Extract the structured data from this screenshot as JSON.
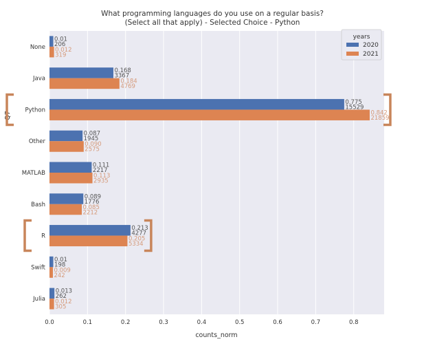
{
  "chart_data": {
    "type": "bar",
    "orientation": "horizontal",
    "title": "What programming languages do you use on a regular basis?",
    "subtitle": "(Select all that apply) - Selected Choice - Python",
    "xlabel": "counts_norm",
    "ylabel": "Q7",
    "xlim": [
      0,
      0.88
    ],
    "x_ticks": [
      "0.0",
      "0.1",
      "0.2",
      "0.3",
      "0.4",
      "0.5",
      "0.6",
      "0.7",
      "0.8"
    ],
    "grid": true,
    "categories": [
      "None",
      "Java",
      "Python",
      "Other",
      "MATLAB",
      "Bash",
      "R",
      "Swift",
      "Julia"
    ],
    "legend": {
      "title": "years",
      "placement": "top-right"
    },
    "series": [
      {
        "name": "2020",
        "color": "#4c72b0",
        "values": [
          0.01,
          0.168,
          0.775,
          0.087,
          0.111,
          0.089,
          0.213,
          0.01,
          0.013
        ],
        "labels": [
          "0.01",
          "0.168",
          "0.775",
          "0.087",
          "0.111",
          "0.089",
          "0.213",
          "0.01",
          "0.013"
        ],
        "counts": [
          "206",
          "3367",
          "15529",
          "1945",
          "2217",
          "1776",
          "4277",
          "198",
          "262"
        ]
      },
      {
        "name": "2021",
        "color": "#dd8452",
        "values": [
          0.012,
          0.184,
          0.842,
          0.09,
          0.113,
          0.085,
          0.205,
          0.009,
          0.012
        ],
        "labels": [
          "0.012",
          "0.184",
          "0.842",
          "0.090",
          "0.113",
          "0.085",
          "0.205",
          "0.009",
          "0.012"
        ],
        "counts": [
          "319",
          "4769",
          "21859",
          "2575",
          "2935",
          "2212",
          "5334",
          "242",
          "305"
        ]
      }
    ],
    "highlight_color": "#c8855a",
    "highlighted_categories": [
      "Python",
      "R"
    ],
    "colors": {
      "plot_background": "#eaeaf2",
      "grid": "#ffffff",
      "text": "#333333"
    }
  }
}
